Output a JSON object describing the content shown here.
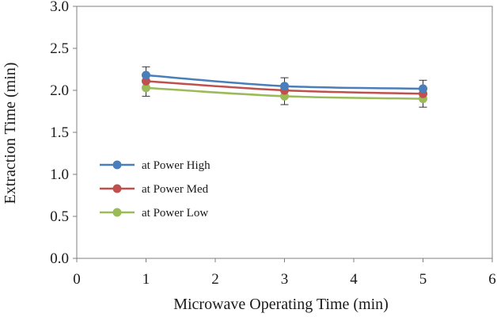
{
  "chart_data": {
    "type": "line",
    "xlabel": "Microwave Operating Time (min)",
    "ylabel": "Extraction  Time (min)",
    "xlim": [
      0,
      6
    ],
    "ylim": [
      0.0,
      3.0
    ],
    "x_ticks": [
      "0",
      "1",
      "2",
      "3",
      "4",
      "5",
      "6"
    ],
    "y_ticks": [
      "0.0",
      "0.5",
      "1.0",
      "1.5",
      "2.0",
      "2.5",
      "3.0"
    ],
    "grid": false,
    "legend_position": "left",
    "x": [
      1,
      3,
      5
    ],
    "series": [
      {
        "name": " at Power High",
        "color": "#4a7ebb",
        "values": [
          2.18,
          2.05,
          2.02
        ],
        "error": [
          0.1,
          0.1,
          0.1
        ]
      },
      {
        "name": "at Power Med",
        "color": "#c0504d",
        "values": [
          2.11,
          2.0,
          1.96
        ],
        "error": [
          0.1,
          0.1,
          0.1
        ]
      },
      {
        "name": "at Power Low",
        "color": "#9bbb59",
        "values": [
          2.03,
          1.93,
          1.9
        ],
        "error": [
          0.1,
          0.1,
          0.1
        ]
      }
    ]
  }
}
